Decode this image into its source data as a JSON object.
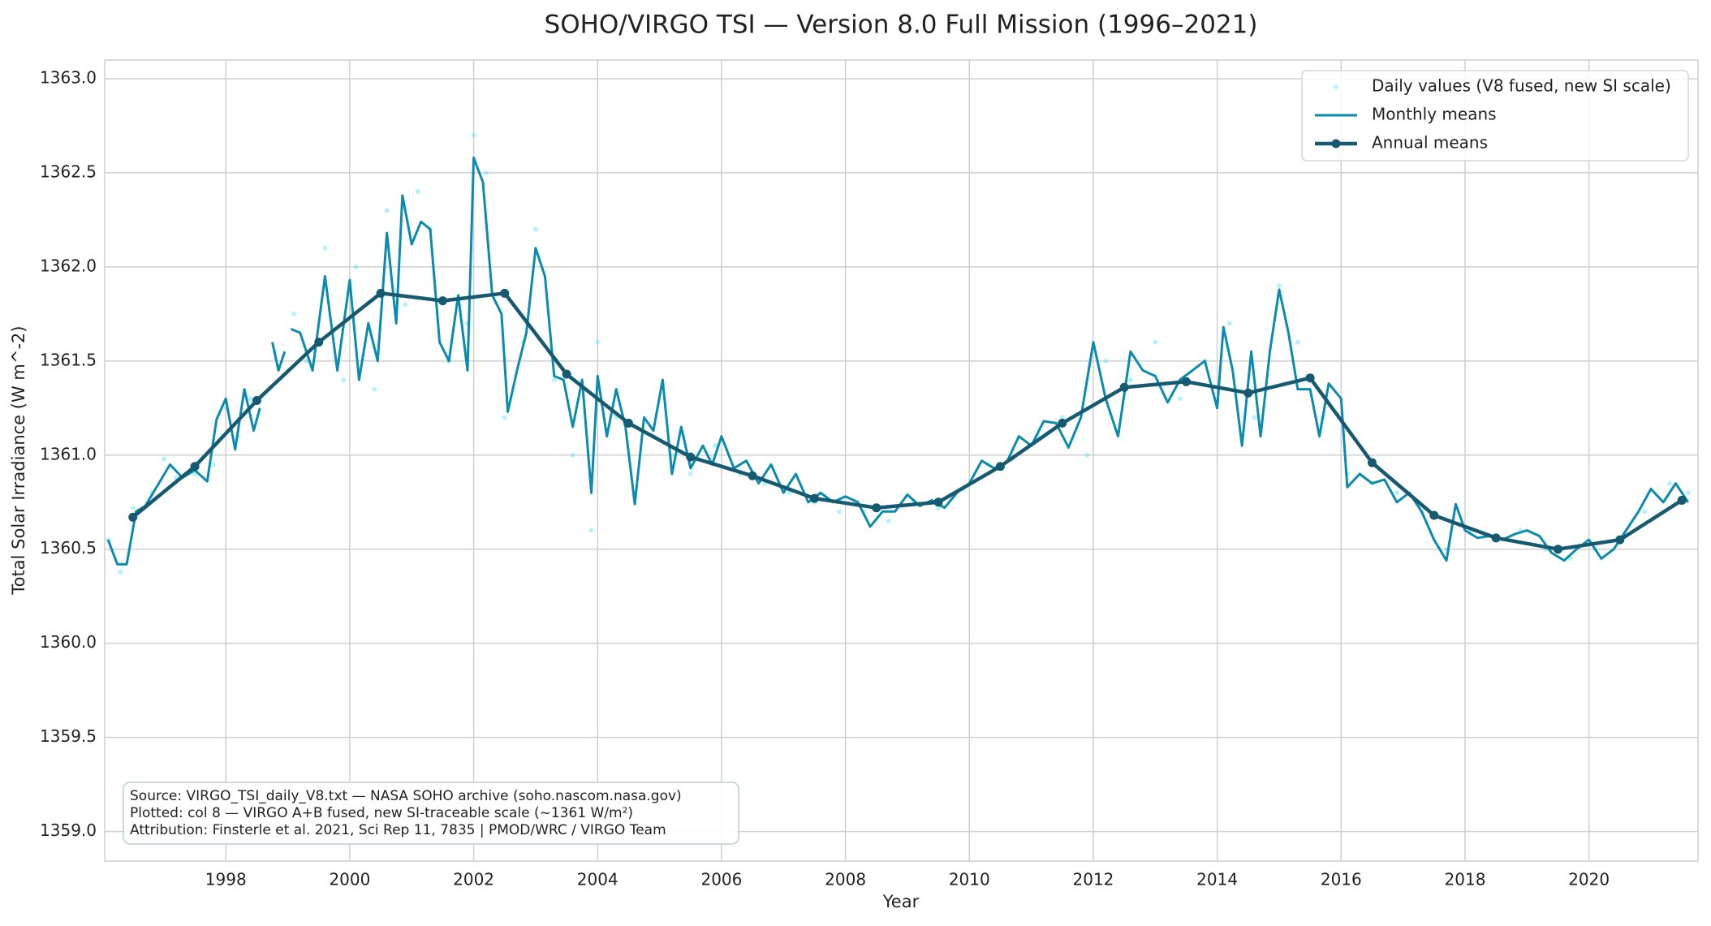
{
  "chart_data": {
    "type": "line",
    "title": "SOHO/VIRGO TSI — Version 8.0 Full Mission (1996–2021)",
    "xlabel": "Year",
    "ylabel": "Total Solar Irradiance (W m^-2)",
    "xlim": [
      1996.045,
      2021.76
    ],
    "ylim": [
      1358.843,
      1363.099
    ],
    "xticks": [
      1998,
      2000,
      2002,
      2004,
      2006,
      2008,
      2010,
      2012,
      2014,
      2016,
      2018,
      2020
    ],
    "yticks": [
      {
        "value": 1359,
        "label": "1359.0"
      },
      1359.5,
      {
        "value": 1360,
        "label": "1360.0"
      },
      1360.5,
      {
        "value": 1361,
        "label": "1361.0"
      },
      1361.5,
      {
        "value": 1362,
        "label": "1362.0"
      },
      1362.5,
      {
        "value": 1363,
        "label": "1363.0"
      }
    ],
    "grid": true,
    "legend": "upper right",
    "annotations": [
      "Source: VIRGO_TSI_daily_V8.txt — NASA SOHO archive (soho.nascom.nasa.gov)",
      "Plotted: col 8 — VIRGO A+B fused, new SI-traceable scale (~1361 W/m²)",
      "Attribution: Finsterle et al. 2021, Sci Rep 11, 7835 | PMOD/WRC / VIRGO Team"
    ],
    "series": [
      {
        "name": "Daily values (V8 fused, new SI scale)",
        "kind": "scatter",
        "color": "#5ee3fb",
        "x": [
          1996.1,
          1996.3,
          1996.5,
          1996.8,
          1997.0,
          1997.2,
          1997.5,
          1997.8,
          1998.0,
          1998.2,
          1998.4,
          1998.8,
          1999.1,
          1999.3,
          1999.6,
          1999.9,
          2000.1,
          2000.4,
          2000.6,
          2000.9,
          2001.1,
          2001.3,
          2001.6,
          2001.9,
          2002.0,
          2002.2,
          2002.5,
          2002.8,
          2003.0,
          2003.3,
          2003.6,
          2003.9,
          2004.0,
          2004.3,
          2004.6,
          2004.9,
          2005.2,
          2005.5,
          2005.9,
          2006.3,
          2006.7,
          2007.1,
          2007.5,
          2007.9,
          2008.3,
          2008.7,
          2009.1,
          2009.5,
          2009.9,
          2010.3,
          2010.7,
          2011.1,
          2011.5,
          2011.9,
          2012.2,
          2012.6,
          2013.0,
          2013.4,
          2013.8,
          2014.2,
          2014.6,
          2015.0,
          2015.3,
          2015.7,
          2016.1,
          2016.5,
          2016.9,
          2017.3,
          2017.7,
          2018.1,
          2018.5,
          2018.9,
          2019.3,
          2019.7,
          2020.1,
          2020.5,
          2020.9,
          2021.3,
          2021.6
        ],
        "values": [
          1360.55,
          1360.38,
          1360.72,
          1360.8,
          1360.98,
          1360.88,
          1360.9,
          1360.95,
          1361.25,
          1361.1,
          1361.3,
          1361.55,
          1361.75,
          1361.5,
          1362.1,
          1361.4,
          1362.0,
          1361.35,
          1362.3,
          1361.8,
          1362.4,
          1362.2,
          1361.5,
          1361.7,
          1362.7,
          1362.5,
          1361.2,
          1361.6,
          1362.2,
          1361.4,
          1361.0,
          1360.6,
          1361.6,
          1361.2,
          1360.8,
          1361.1,
          1361.0,
          1360.9,
          1361.05,
          1360.9,
          1360.85,
          1360.8,
          1360.75,
          1360.7,
          1360.7,
          1360.65,
          1360.75,
          1360.72,
          1360.82,
          1360.95,
          1360.98,
          1361.1,
          1361.2,
          1361.0,
          1361.5,
          1361.4,
          1361.6,
          1361.3,
          1361.5,
          1361.7,
          1361.2,
          1361.9,
          1361.6,
          1361.2,
          1360.9,
          1360.85,
          1360.8,
          1360.7,
          1360.5,
          1360.6,
          1360.55,
          1360.6,
          1360.5,
          1360.45,
          1360.5,
          1360.55,
          1360.7,
          1360.85,
          1360.8
        ]
      },
      {
        "name": "Monthly means",
        "kind": "line",
        "color": "#0b8bad",
        "x": [
          1996.1,
          1996.25,
          1996.4,
          1996.55,
          1996.7,
          1996.9,
          1997.1,
          1997.3,
          1997.5,
          1997.7,
          1997.85,
          1998.0,
          1998.15,
          1998.3,
          1998.45,
          1998.55,
          1998.65,
          1998.75,
          1998.85,
          1998.95,
          1999.0,
          1999.05,
          1999.2,
          1999.4,
          1999.6,
          1999.8,
          2000.0,
          2000.15,
          2000.3,
          2000.45,
          2000.6,
          2000.75,
          2000.85,
          2001.0,
          2001.15,
          2001.3,
          2001.45,
          2001.6,
          2001.75,
          2001.9,
          2002.0,
          2002.15,
          2002.3,
          2002.45,
          2002.55,
          2002.7,
          2002.85,
          2003.0,
          2003.15,
          2003.3,
          2003.45,
          2003.6,
          2003.75,
          2003.9,
          2004.0,
          2004.15,
          2004.3,
          2004.45,
          2004.6,
          2004.75,
          2004.9,
          2005.05,
          2005.2,
          2005.35,
          2005.5,
          2005.7,
          2005.85,
          2006.0,
          2006.2,
          2006.4,
          2006.6,
          2006.8,
          2007.0,
          2007.2,
          2007.4,
          2007.6,
          2007.8,
          2008.0,
          2008.2,
          2008.4,
          2008.6,
          2008.8,
          2009.0,
          2009.2,
          2009.4,
          2009.6,
          2009.8,
          2010.0,
          2010.2,
          2010.4,
          2010.6,
          2010.8,
          2011.0,
          2011.2,
          2011.4,
          2011.6,
          2011.8,
          2012.0,
          2012.2,
          2012.4,
          2012.6,
          2012.8,
          2013.0,
          2013.2,
          2013.4,
          2013.6,
          2013.8,
          2014.0,
          2014.1,
          2014.25,
          2014.4,
          2014.55,
          2014.7,
          2014.85,
          2015.0,
          2015.15,
          2015.3,
          2015.5,
          2015.65,
          2015.8,
          2016.0,
          2016.1,
          2016.3,
          2016.5,
          2016.7,
          2016.9,
          2017.1,
          2017.3,
          2017.5,
          2017.7,
          2017.85,
          2018.0,
          2018.2,
          2018.4,
          2018.6,
          2018.8,
          2019.0,
          2019.2,
          2019.4,
          2019.6,
          2019.8,
          2020.0,
          2020.2,
          2020.4,
          2020.6,
          2020.8,
          2021.0,
          2021.2,
          2021.4,
          2021.6
        ],
        "values": [
          1360.55,
          1360.42,
          1360.42,
          1360.7,
          1360.73,
          1360.84,
          1360.95,
          1360.88,
          1360.92,
          1360.86,
          1361.19,
          1361.3,
          1361.03,
          1361.35,
          1361.13,
          1361.25,
          null,
          1361.6,
          1361.45,
          1361.55,
          null,
          1361.67,
          1361.65,
          1361.45,
          1361.95,
          1361.45,
          1361.93,
          1361.4,
          1361.7,
          1361.5,
          1362.18,
          1361.7,
          1362.38,
          1362.12,
          1362.24,
          1362.2,
          1361.6,
          1361.5,
          1361.85,
          1361.45,
          1362.58,
          1362.45,
          1361.85,
          1361.75,
          1361.23,
          1361.45,
          1361.65,
          1362.1,
          1361.95,
          1361.42,
          1361.4,
          1361.15,
          1361.4,
          1360.8,
          1361.42,
          1361.1,
          1361.35,
          1361.15,
          1360.74,
          1361.2,
          1361.13,
          1361.4,
          1360.9,
          1361.15,
          1360.93,
          1361.05,
          1360.95,
          1361.1,
          1360.93,
          1360.97,
          1360.85,
          1360.95,
          1360.8,
          1360.9,
          1360.75,
          1360.8,
          1360.75,
          1360.78,
          1360.75,
          1360.62,
          1360.7,
          1360.7,
          1360.79,
          1360.73,
          1360.76,
          1360.72,
          1360.8,
          1360.85,
          1360.97,
          1360.93,
          1360.96,
          1361.1,
          1361.05,
          1361.18,
          1361.17,
          1361.04,
          1361.2,
          1361.6,
          1361.3,
          1361.1,
          1361.55,
          1361.45,
          1361.42,
          1361.28,
          1361.4,
          1361.45,
          1361.5,
          1361.25,
          1361.68,
          1361.45,
          1361.05,
          1361.55,
          1361.1,
          1361.55,
          1361.88,
          1361.65,
          1361.35,
          1361.35,
          1361.1,
          1361.38,
          1361.3,
          1360.83,
          1360.9,
          1360.85,
          1360.87,
          1360.75,
          1360.8,
          1360.7,
          1360.55,
          1360.44,
          1360.74,
          1360.6,
          1360.56,
          1360.57,
          1360.55,
          1360.58,
          1360.6,
          1360.57,
          1360.48,
          1360.44,
          1360.5,
          1360.55,
          1360.45,
          1360.5,
          1360.6,
          1360.7,
          1360.82,
          1360.75,
          1360.85,
          1360.75
        ]
      },
      {
        "name": "Annual means",
        "kind": "line",
        "marker": true,
        "color": "#165a72",
        "x": [
          1996.5,
          1997.5,
          1998.5,
          1999.5,
          2000.5,
          2001.5,
          2002.5,
          2003.5,
          2004.5,
          2005.5,
          2006.5,
          2007.5,
          2008.5,
          2009.5,
          2010.5,
          2011.5,
          2012.5,
          2013.5,
          2014.5,
          2015.5,
          2016.5,
          2017.5,
          2018.5,
          2019.5,
          2020.5,
          2021.5
        ],
        "values": [
          1360.67,
          1360.94,
          1361.29,
          1361.6,
          1361.86,
          1361.82,
          1361.86,
          1361.43,
          1361.17,
          1360.99,
          1360.89,
          1360.77,
          1360.72,
          1360.75,
          1360.94,
          1361.17,
          1361.36,
          1361.39,
          1361.33,
          1361.41,
          1360.96,
          1360.68,
          1360.56,
          1360.5,
          1360.55,
          1360.76
        ]
      }
    ]
  }
}
